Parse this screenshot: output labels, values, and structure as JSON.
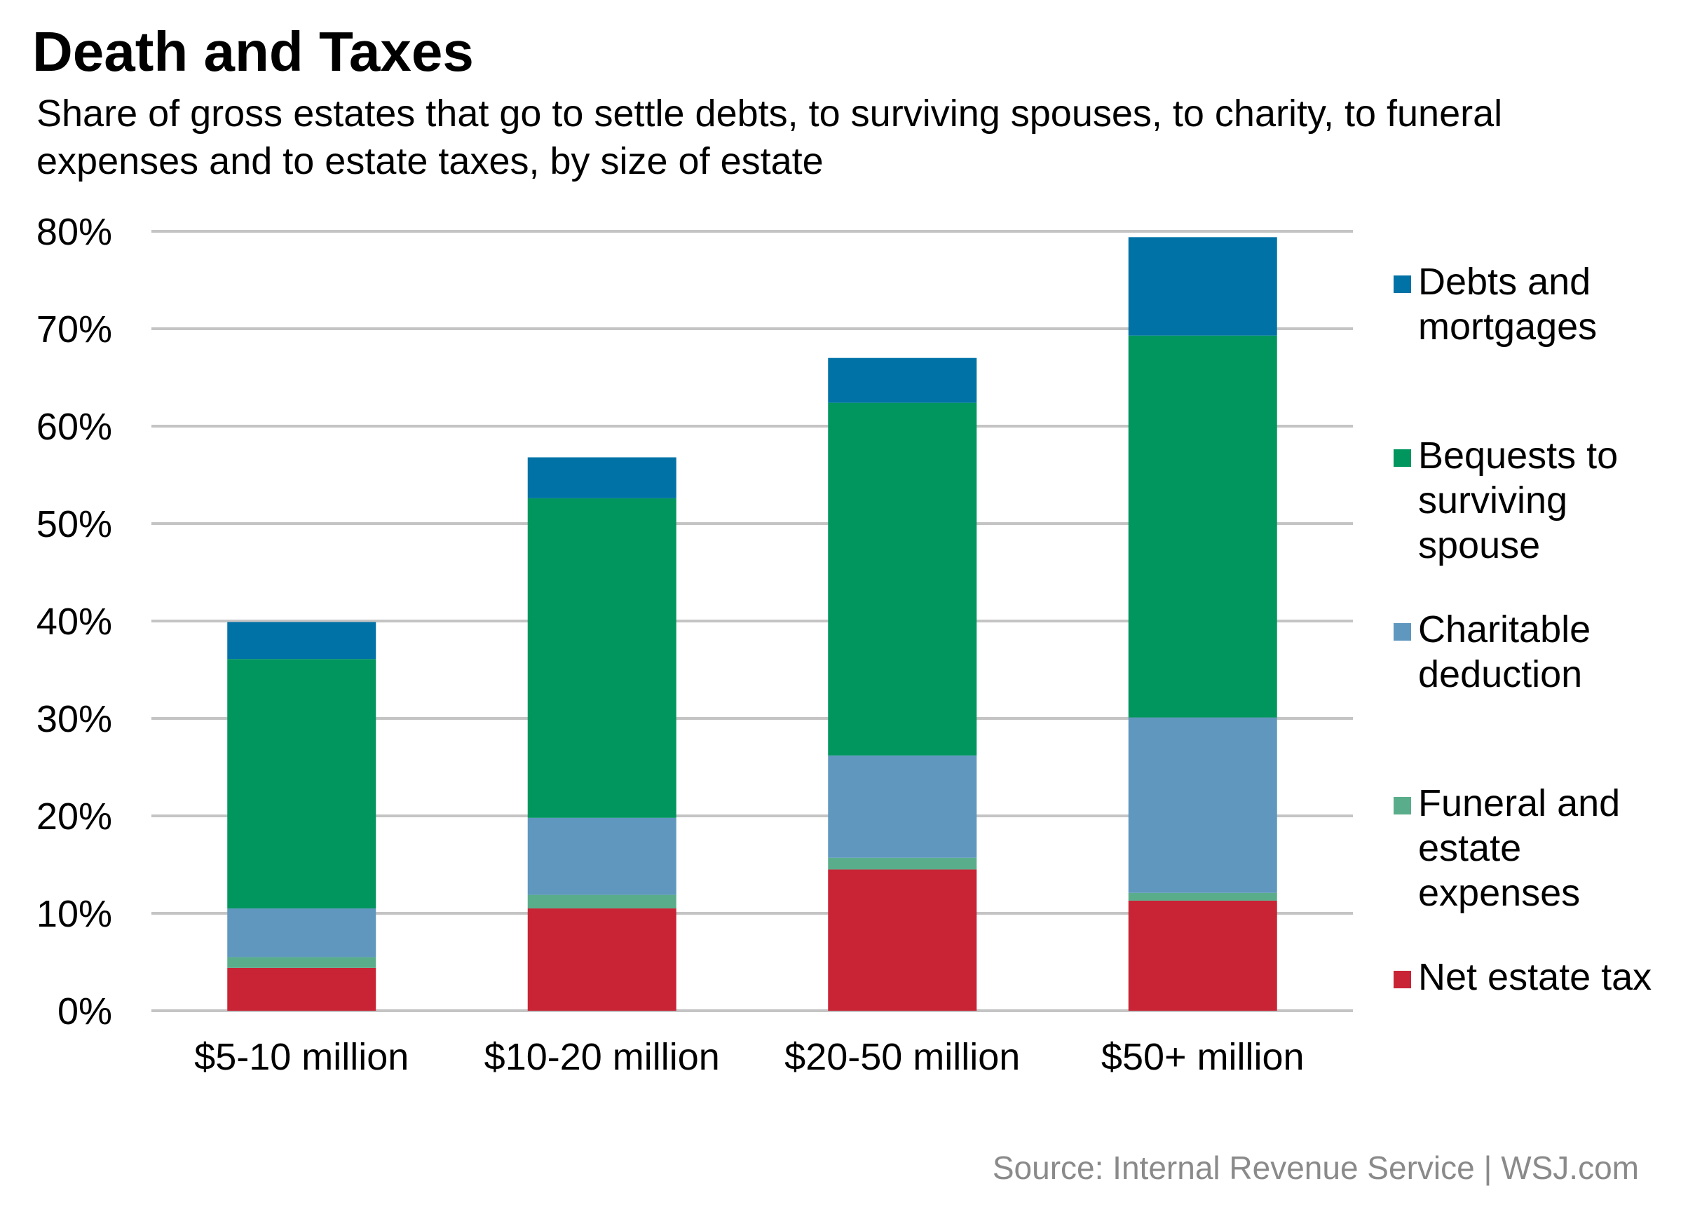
{
  "title": "Death and Taxes",
  "subtitle": "Share of gross estates that go to settle debts, to surviving spouses, to charity, to funeral expenses and to estate taxes, by size of estate",
  "source": "Source: Internal Revenue Service  |  WSJ.com",
  "legend": {
    "items": [
      {
        "label": "Debts and mortgages",
        "color": "#0072a6"
      },
      {
        "label": "Bequests to surviving spouse",
        "color": "#00965e"
      },
      {
        "label": "Charitable deduction",
        "color": "#5f97bf"
      },
      {
        "label": "Funeral and estate expenses",
        "color": "#5aad8b"
      },
      {
        "label": "Net estate tax",
        "color": "#c82436"
      }
    ]
  },
  "chart_data": {
    "type": "bar",
    "stacked": true,
    "title": "Death and Taxes",
    "xlabel": "",
    "ylabel": "",
    "ylim": [
      0,
      80
    ],
    "yticks": [
      0,
      10,
      20,
      30,
      40,
      50,
      60,
      70,
      80
    ],
    "ytick_format": "{v}%",
    "grid": true,
    "legend_position": "right",
    "categories": [
      "$5-10 million",
      "$10-20 million",
      "$20-50 million",
      "$50+ million"
    ],
    "series": [
      {
        "name": "Net estate tax",
        "color": "#c82436",
        "values": [
          4.4,
          10.5,
          14.5,
          11.3
        ]
      },
      {
        "name": "Funeral and estate expenses",
        "color": "#5aad8b",
        "values": [
          1.1,
          1.4,
          1.2,
          0.8
        ]
      },
      {
        "name": "Charitable deduction",
        "color": "#5f97bf",
        "values": [
          5.0,
          7.9,
          10.5,
          18.0
        ]
      },
      {
        "name": "Bequests to surviving spouse",
        "color": "#00965e",
        "values": [
          25.6,
          32.8,
          36.2,
          39.2
        ]
      },
      {
        "name": "Debts and mortgages",
        "color": "#0072a6",
        "values": [
          3.8,
          4.2,
          4.6,
          10.1
        ]
      }
    ]
  }
}
